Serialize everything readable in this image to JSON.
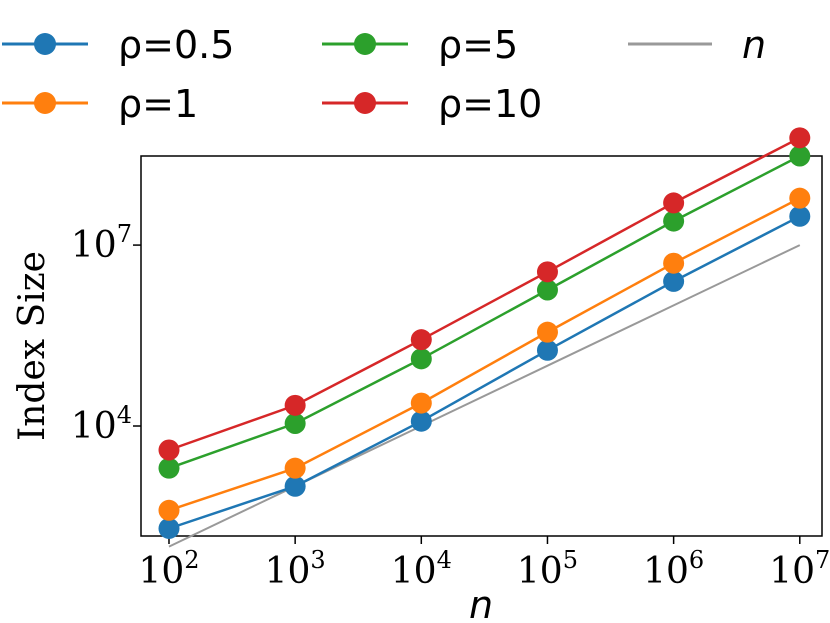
{
  "chart_data": {
    "type": "line",
    "title": "",
    "xlabel": "n",
    "ylabel": "Index Size",
    "xscale": "log",
    "yscale": "log",
    "x": [
      100,
      1000,
      10000,
      100000,
      1000000,
      10000000
    ],
    "x_tick_labels": [
      {
        "base": "10",
        "exp": "2"
      },
      {
        "base": "10",
        "exp": "3"
      },
      {
        "base": "10",
        "exp": "4"
      },
      {
        "base": "10",
        "exp": "5"
      },
      {
        "base": "10",
        "exp": "6"
      },
      {
        "base": "10",
        "exp": "7"
      }
    ],
    "y_ticks": [
      10000,
      10000000
    ],
    "y_tick_labels": [
      {
        "base": "10",
        "exp": "4"
      },
      {
        "base": "10",
        "exp": "7"
      }
    ],
    "xlim": [
      60,
      15000000
    ],
    "ylim": [
      150,
      300000000
    ],
    "grid": false,
    "legend": {
      "placement": "above-plot",
      "columns": 3
    },
    "series": [
      {
        "name": "ρ=0.5",
        "legend_label": "ρ=0.5",
        "color": "#1f77b4",
        "marker": true,
        "values": [
          200,
          1000,
          12000,
          180000,
          2500000,
          30000000
        ]
      },
      {
        "name": "ρ=1",
        "legend_label": "ρ=1",
        "color": "#ff7f0e",
        "marker": true,
        "values": [
          400,
          2000,
          24000,
          360000,
          5000000,
          60000000
        ]
      },
      {
        "name": "ρ=5",
        "legend_label": "ρ=5",
        "color": "#2ca02c",
        "marker": true,
        "values": [
          2000,
          11000,
          130000,
          1800000,
          25000000,
          300000000
        ]
      },
      {
        "name": "ρ=10",
        "legend_label": "ρ=10",
        "color": "#d62728",
        "marker": true,
        "values": [
          4000,
          22000,
          270000,
          3600000,
          50000000,
          600000000
        ]
      },
      {
        "name": "n",
        "legend_label": "n",
        "color": "#999999",
        "marker": false,
        "values": [
          100,
          1000,
          10000,
          100000,
          1000000,
          10000000
        ]
      }
    ]
  }
}
